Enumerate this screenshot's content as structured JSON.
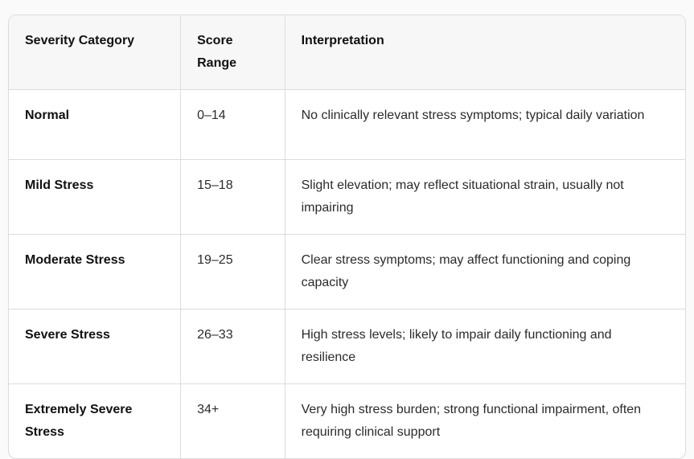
{
  "page": {
    "background": "#fafafa"
  },
  "table": {
    "name": "stress-severity-table",
    "colors": {
      "outer_border": "#dcdcdc",
      "grid_border": "#dcdcdc",
      "header_bg": "#f7f7f7",
      "body_bg": "#ffffff",
      "header_text": "#111111",
      "category_text": "#111111",
      "body_text": "#2b2b2b"
    },
    "columns": [
      {
        "label": "Severity Category"
      },
      {
        "label": "Score Range"
      },
      {
        "label": "Interpretation"
      }
    ],
    "rows": [
      {
        "category": "Normal",
        "score_range": "0–14",
        "interpretation": "No clinically relevant stress symptoms; typical daily variation"
      },
      {
        "category": "Mild Stress",
        "score_range": "15–18",
        "interpretation": "Slight elevation; may reflect situational strain, usually not impairing"
      },
      {
        "category": "Moderate Stress",
        "score_range": "19–25",
        "interpretation": "Clear stress symptoms; may affect functioning and coping capacity"
      },
      {
        "category": "Severe Stress",
        "score_range": "26–33",
        "interpretation": "High stress levels; likely to impair daily functioning and resilience"
      },
      {
        "category": "Extremely Severe Stress",
        "score_range": "34+",
        "interpretation": "Very high stress burden; strong functional impairment, often requiring clinical support"
      }
    ]
  }
}
